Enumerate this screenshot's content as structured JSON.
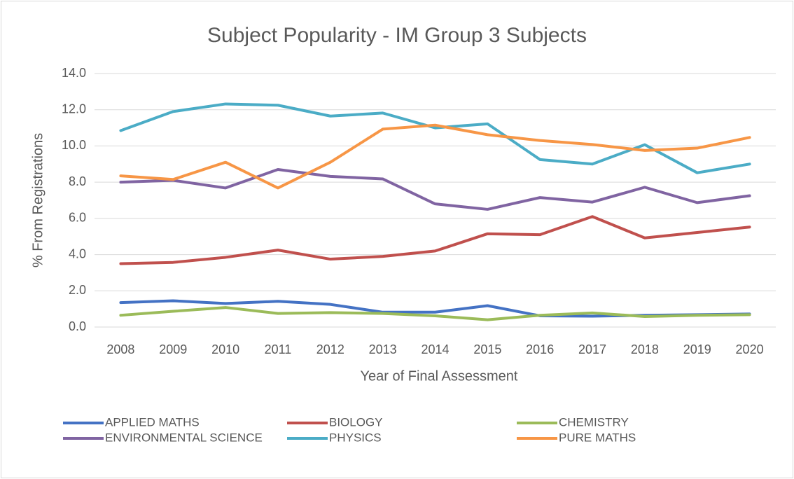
{
  "chart_data": {
    "type": "line",
    "title": "Subject Popularity - IM Group 3 Subjects",
    "xlabel": "Year of Final Assessment",
    "ylabel": "% From Registrations",
    "categories": [
      "2008",
      "2009",
      "2010",
      "2011",
      "2012",
      "2013",
      "2014",
      "2015",
      "2016",
      "2017",
      "2018",
      "2019",
      "2020"
    ],
    "series": [
      {
        "name": "APPLIED MATHS",
        "color": "#4472c4",
        "values": [
          1.35,
          1.45,
          1.3,
          1.42,
          1.25,
          0.82,
          0.82,
          1.18,
          0.62,
          0.6,
          0.65,
          0.68,
          0.72
        ]
      },
      {
        "name": "BIOLOGY",
        "color": "#c0504d",
        "values": [
          3.5,
          3.57,
          3.85,
          4.25,
          3.75,
          3.9,
          4.2,
          5.15,
          5.1,
          6.1,
          4.92,
          5.22,
          5.52
        ]
      },
      {
        "name": "CHEMISTRY",
        "color": "#9bbb59",
        "values": [
          0.65,
          0.87,
          1.08,
          0.75,
          0.8,
          0.75,
          0.62,
          0.4,
          0.65,
          0.78,
          0.58,
          0.65,
          0.68
        ]
      },
      {
        "name": "ENVIRONMENTAL SCIENCE",
        "color": "#8064a2",
        "values": [
          8.0,
          8.1,
          7.68,
          8.7,
          8.32,
          8.18,
          6.8,
          6.5,
          7.15,
          6.9,
          7.72,
          6.87,
          7.25
        ]
      },
      {
        "name": "PHYSICS",
        "color": "#4bacc6",
        "values": [
          10.85,
          11.9,
          12.32,
          12.25,
          11.65,
          11.82,
          11.0,
          11.22,
          9.25,
          9.0,
          10.07,
          8.52,
          9.0
        ]
      },
      {
        "name": "PURE MATHS",
        "color": "#f79646",
        "values": [
          8.35,
          8.15,
          9.1,
          7.68,
          9.1,
          10.93,
          11.15,
          10.62,
          10.3,
          10.08,
          9.75,
          9.88,
          10.47
        ]
      }
    ],
    "ylim": [
      0,
      14
    ],
    "yticks": [
      {
        "value": 0,
        "label": "0.0"
      },
      {
        "value": 2,
        "label": "2.0"
      },
      {
        "value": 4,
        "label": "4.0"
      },
      {
        "value": 6,
        "label": "6.0"
      },
      {
        "value": 8,
        "label": "8.0"
      },
      {
        "value": 10,
        "label": "10.0"
      },
      {
        "value": 12,
        "label": "12.0"
      },
      {
        "value": 14,
        "label": "14.0"
      }
    ],
    "grid": true,
    "legend": "bottom"
  }
}
